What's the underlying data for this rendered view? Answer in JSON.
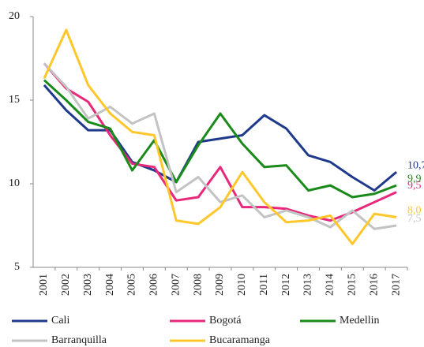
{
  "chart_data": {
    "type": "line",
    "categories": [
      "2001",
      "2002",
      "2003",
      "2004",
      "2005",
      "2006",
      "2007",
      "2008",
      "2009",
      "2010",
      "2011",
      "2012",
      "2013",
      "2014",
      "2015",
      "2016",
      "2017"
    ],
    "ylim": [
      5,
      20
    ],
    "yticks": [
      5,
      10,
      15,
      20
    ],
    "grid": false,
    "series": [
      {
        "name": "Cali",
        "color": "#1f3a8a",
        "values": [
          15.9,
          14.4,
          13.2,
          13.2,
          11.3,
          10.8,
          10.1,
          12.5,
          12.7,
          12.9,
          14.1,
          13.3,
          11.7,
          11.3,
          10.4,
          9.6,
          10.7
        ],
        "value_labels": [
          null,
          null,
          null,
          null,
          null,
          null,
          null,
          null,
          null,
          null,
          null,
          null,
          null,
          null,
          null,
          null,
          "10,7"
        ]
      },
      {
        "name": "Bogotá",
        "color": "#e8287a",
        "values": [
          17.2,
          15.7,
          14.9,
          12.9,
          11.2,
          11.0,
          9.0,
          9.2,
          11.0,
          8.6,
          8.6,
          8.5,
          8.1,
          7.8,
          8.3,
          8.9,
          9.5
        ],
        "value_labels": [
          null,
          null,
          null,
          null,
          null,
          null,
          null,
          null,
          null,
          null,
          null,
          null,
          null,
          null,
          null,
          null,
          "9,5"
        ]
      },
      {
        "name": "Medellin",
        "color": "#1a8a1a",
        "values": [
          16.2,
          15.0,
          13.7,
          13.3,
          10.8,
          12.6,
          10.1,
          12.3,
          14.2,
          12.4,
          11.0,
          11.1,
          9.6,
          9.9,
          9.2,
          9.4,
          9.9
        ],
        "value_labels": [
          null,
          null,
          null,
          null,
          null,
          null,
          null,
          null,
          null,
          null,
          null,
          null,
          null,
          null,
          null,
          null,
          "9,9"
        ]
      },
      {
        "name": "Barranquilla",
        "color": "#c3c3c3",
        "values": [
          17.2,
          15.8,
          13.9,
          14.6,
          13.6,
          14.2,
          9.5,
          10.4,
          8.9,
          9.3,
          8.0,
          8.4,
          8.0,
          7.4,
          8.4,
          7.3,
          7.5
        ],
        "value_labels": [
          null,
          null,
          null,
          null,
          null,
          null,
          null,
          null,
          null,
          null,
          null,
          null,
          null,
          null,
          null,
          null,
          "7,5"
        ]
      },
      {
        "name": "Bucaramanga",
        "color": "#ffc72c",
        "values": [
          16.3,
          19.2,
          15.9,
          14.2,
          13.1,
          12.9,
          7.8,
          7.6,
          8.6,
          10.7,
          8.9,
          7.7,
          7.8,
          8.1,
          6.4,
          8.2,
          8.0
        ],
        "value_labels": [
          null,
          null,
          null,
          null,
          null,
          null,
          null,
          null,
          null,
          null,
          null,
          null,
          null,
          null,
          null,
          null,
          "8,0"
        ]
      }
    ]
  }
}
